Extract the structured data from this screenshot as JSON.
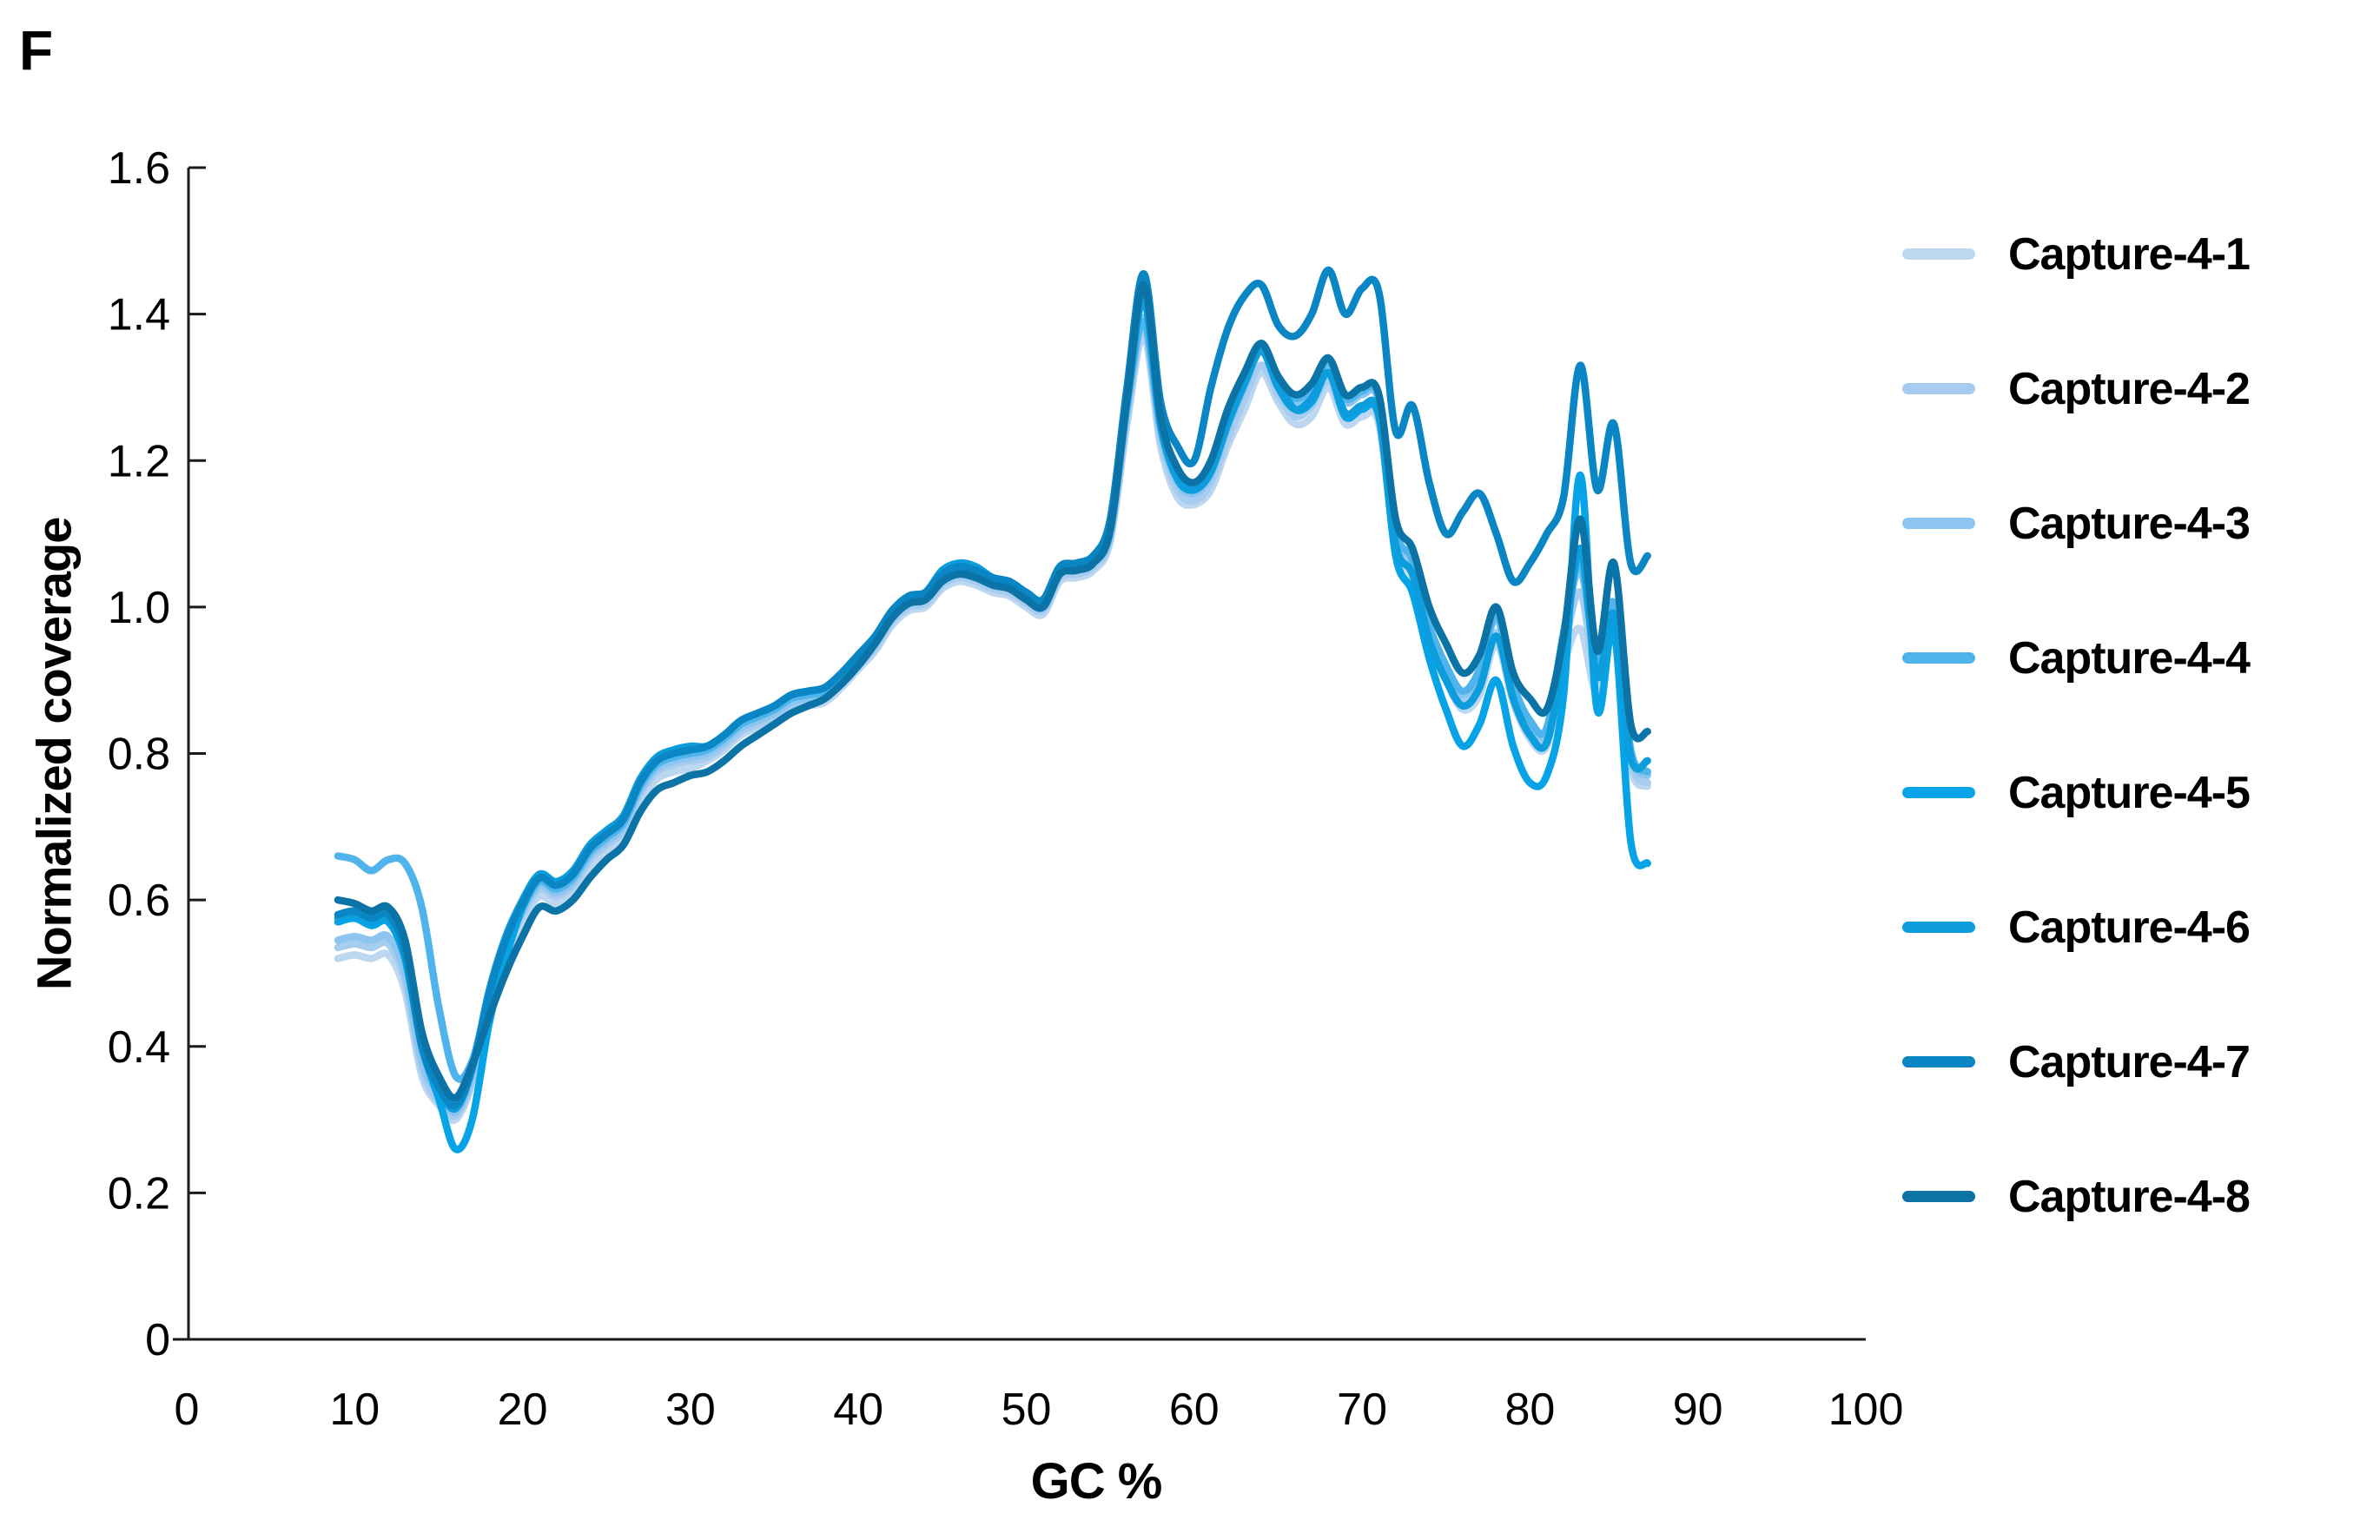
{
  "figure": {
    "panel_label": "F"
  },
  "chart_data": {
    "type": "line",
    "title": "",
    "xlabel": "GC %",
    "ylabel": "Normalized coverage",
    "xlim": [
      0,
      100
    ],
    "ylim": [
      0,
      1.6
    ],
    "grid": false,
    "legend_position": "right",
    "axis_color": "#1a1a1a",
    "tick_label_color": "#000000",
    "x_ticks": [
      0,
      10,
      20,
      30,
      40,
      50,
      60,
      70,
      80,
      90,
      100
    ],
    "y_tick_values": [
      0,
      0.2,
      0.4,
      0.6,
      0.8,
      1.0,
      1.2,
      1.4,
      1.6
    ],
    "y_ticks": [
      "0",
      "0.2",
      "0.4",
      "0.6",
      "0.8",
      "1.0",
      "1.2",
      "1.4",
      "1.6"
    ],
    "x": [
      9,
      10,
      11,
      12,
      13,
      14,
      15,
      16,
      17,
      18,
      19,
      20,
      21,
      22,
      23,
      24,
      25,
      26,
      27,
      28,
      29,
      30,
      31,
      32,
      33,
      34,
      35,
      36,
      37,
      38,
      39,
      40,
      41,
      42,
      43,
      44,
      45,
      46,
      47,
      48,
      49,
      50,
      51,
      52,
      53,
      54,
      55,
      56,
      57,
      58,
      59,
      60,
      61,
      62,
      63,
      64,
      65,
      66,
      67,
      68,
      69,
      70,
      71,
      72,
      73,
      74,
      75,
      76,
      77,
      78,
      79,
      80,
      81,
      82,
      83,
      84,
      85,
      86,
      87
    ],
    "series": [
      {
        "name": "Capture-4-1",
        "color": "#BDD7F0",
        "values": [
          0.52,
          0.525,
          0.52,
          0.525,
          0.475,
          0.36,
          0.32,
          0.3,
          0.35,
          0.445,
          0.52,
          0.57,
          0.605,
          0.595,
          0.61,
          0.645,
          0.665,
          0.685,
          0.735,
          0.765,
          0.775,
          0.78,
          0.79,
          0.805,
          0.825,
          0.835,
          0.845,
          0.86,
          0.865,
          0.87,
          0.89,
          0.915,
          0.94,
          0.975,
          0.995,
          1.0,
          1.025,
          1.035,
          1.03,
          1.02,
          1.015,
          1.0,
          0.99,
          1.035,
          1.04,
          1.05,
          1.09,
          1.25,
          1.37,
          1.22,
          1.15,
          1.14,
          1.16,
          1.22,
          1.27,
          1.32,
          1.28,
          1.25,
          1.26,
          1.3,
          1.25,
          1.26,
          1.25,
          1.08,
          1.04,
          0.95,
          0.9,
          0.86,
          0.88,
          0.95,
          0.87,
          0.82,
          0.81,
          0.92,
          0.97,
          0.88,
          0.96,
          0.78,
          0.755
        ]
      },
      {
        "name": "Capture-4-2",
        "color": "#A6CCEF",
        "values": [
          0.535,
          0.54,
          0.535,
          0.54,
          0.49,
          0.37,
          0.325,
          0.305,
          0.355,
          0.455,
          0.53,
          0.58,
          0.615,
          0.605,
          0.62,
          0.655,
          0.675,
          0.695,
          0.745,
          0.775,
          0.785,
          0.79,
          0.795,
          0.81,
          0.83,
          0.84,
          0.85,
          0.865,
          0.87,
          0.875,
          0.895,
          0.92,
          0.945,
          0.98,
          1.0,
          1.005,
          1.03,
          1.04,
          1.035,
          1.025,
          1.02,
          1.005,
          0.995,
          1.04,
          1.045,
          1.055,
          1.095,
          1.26,
          1.38,
          1.23,
          1.16,
          1.145,
          1.17,
          1.23,
          1.285,
          1.33,
          1.29,
          1.26,
          1.275,
          1.31,
          1.26,
          1.27,
          1.26,
          1.09,
          1.05,
          0.96,
          0.905,
          0.87,
          0.895,
          0.965,
          0.88,
          0.83,
          0.82,
          0.94,
          1.02,
          0.9,
          0.98,
          0.79,
          0.76
        ]
      },
      {
        "name": "Capture-4-3",
        "color": "#8CC5F0",
        "values": [
          0.545,
          0.55,
          0.545,
          0.55,
          0.5,
          0.38,
          0.335,
          0.31,
          0.36,
          0.46,
          0.535,
          0.585,
          0.62,
          0.61,
          0.625,
          0.66,
          0.68,
          0.7,
          0.75,
          0.78,
          0.79,
          0.795,
          0.8,
          0.815,
          0.835,
          0.845,
          0.855,
          0.87,
          0.875,
          0.88,
          0.9,
          0.925,
          0.95,
          0.985,
          1.005,
          1.01,
          1.04,
          1.05,
          1.045,
          1.03,
          1.025,
          1.01,
          1.0,
          1.045,
          1.05,
          1.06,
          1.1,
          1.27,
          1.395,
          1.24,
          1.17,
          1.155,
          1.18,
          1.245,
          1.3,
          1.35,
          1.305,
          1.28,
          1.295,
          1.33,
          1.28,
          1.29,
          1.28,
          1.1,
          1.06,
          0.97,
          0.915,
          0.88,
          0.91,
          0.985,
          0.89,
          0.84,
          0.83,
          0.96,
          1.05,
          0.92,
          1.0,
          0.8,
          0.77
        ]
      },
      {
        "name": "Capture-4-4",
        "color": "#4FB3EC",
        "values": [
          0.66,
          0.655,
          0.64,
          0.655,
          0.65,
          0.59,
          0.455,
          0.36,
          0.38,
          0.47,
          0.54,
          0.59,
          0.625,
          0.615,
          0.63,
          0.665,
          0.685,
          0.705,
          0.755,
          0.785,
          0.795,
          0.8,
          0.805,
          0.82,
          0.84,
          0.85,
          0.86,
          0.875,
          0.88,
          0.885,
          0.905,
          0.93,
          0.955,
          0.99,
          1.01,
          1.015,
          1.045,
          1.055,
          1.05,
          1.035,
          1.03,
          1.015,
          1.005,
          1.05,
          1.055,
          1.065,
          1.105,
          1.275,
          1.39,
          1.245,
          1.175,
          1.16,
          1.185,
          1.25,
          1.305,
          1.355,
          1.31,
          1.285,
          1.3,
          1.335,
          1.285,
          1.295,
          1.285,
          1.105,
          1.065,
          0.975,
          0.92,
          0.885,
          0.915,
          0.99,
          0.895,
          0.845,
          0.835,
          0.965,
          1.06,
          0.925,
          1.005,
          0.805,
          0.775
        ]
      },
      {
        "name": "Capture-4-5",
        "color": "#06A3E6",
        "values": [
          0.57,
          0.575,
          0.565,
          0.57,
          0.52,
          0.4,
          0.33,
          0.26,
          0.3,
          0.43,
          0.52,
          0.59,
          0.63,
          0.62,
          0.635,
          0.67,
          0.69,
          0.71,
          0.76,
          0.79,
          0.8,
          0.805,
          0.81,
          0.825,
          0.845,
          0.855,
          0.865,
          0.88,
          0.885,
          0.89,
          0.91,
          0.935,
          0.96,
          0.995,
          1.015,
          1.02,
          1.05,
          1.06,
          1.055,
          1.04,
          1.035,
          1.02,
          1.01,
          1.055,
          1.06,
          1.07,
          1.115,
          1.29,
          1.42,
          1.25,
          1.18,
          1.165,
          1.19,
          1.255,
          1.31,
          1.36,
          1.31,
          1.27,
          1.28,
          1.32,
          1.26,
          1.27,
          1.26,
          1.07,
          1.02,
          0.93,
          0.86,
          0.81,
          0.84,
          0.9,
          0.81,
          0.76,
          0.77,
          0.88,
          1.18,
          0.86,
          0.97,
          0.68,
          0.65
        ]
      },
      {
        "name": "Capture-4-6",
        "color": "#0D9DDC",
        "values": [
          0.575,
          0.58,
          0.57,
          0.575,
          0.525,
          0.41,
          0.345,
          0.315,
          0.37,
          0.475,
          0.55,
          0.6,
          0.635,
          0.625,
          0.64,
          0.675,
          0.695,
          0.715,
          0.765,
          0.795,
          0.805,
          0.81,
          0.81,
          0.825,
          0.845,
          0.855,
          0.865,
          0.88,
          0.885,
          0.89,
          0.91,
          0.935,
          0.96,
          0.995,
          1.015,
          1.02,
          1.05,
          1.06,
          1.055,
          1.04,
          1.035,
          1.02,
          1.01,
          1.055,
          1.06,
          1.07,
          1.11,
          1.28,
          1.42,
          1.25,
          1.175,
          1.16,
          1.185,
          1.25,
          1.305,
          1.35,
          1.3,
          1.27,
          1.285,
          1.32,
          1.265,
          1.275,
          1.265,
          1.085,
          1.045,
          0.955,
          0.9,
          0.865,
          0.89,
          0.96,
          0.875,
          0.825,
          0.815,
          0.935,
          1.08,
          0.905,
          0.99,
          0.795,
          0.79
        ]
      },
      {
        "name": "Capture-4-7",
        "color": "#0A86C4",
        "values": [
          0.58,
          0.585,
          0.575,
          0.58,
          0.53,
          0.4,
          0.345,
          0.32,
          0.37,
          0.47,
          0.545,
          0.595,
          0.63,
          0.62,
          0.635,
          0.67,
          0.69,
          0.71,
          0.76,
          0.79,
          0.8,
          0.805,
          0.81,
          0.825,
          0.845,
          0.855,
          0.865,
          0.88,
          0.885,
          0.89,
          0.91,
          0.935,
          0.96,
          0.995,
          1.015,
          1.02,
          1.045,
          1.055,
          1.05,
          1.04,
          1.035,
          1.02,
          1.01,
          1.055,
          1.06,
          1.07,
          1.12,
          1.3,
          1.455,
          1.28,
          1.22,
          1.2,
          1.3,
          1.38,
          1.425,
          1.44,
          1.385,
          1.37,
          1.4,
          1.46,
          1.4,
          1.435,
          1.43,
          1.24,
          1.275,
          1.17,
          1.1,
          1.13,
          1.155,
          1.1,
          1.035,
          1.06,
          1.1,
          1.15,
          1.33,
          1.16,
          1.25,
          1.06,
          1.07
        ]
      },
      {
        "name": "Capture-4-8",
        "color": "#0B73A6",
        "values": [
          0.6,
          0.595,
          0.585,
          0.59,
          0.545,
          0.42,
          0.36,
          0.33,
          0.375,
          0.44,
          0.5,
          0.55,
          0.59,
          0.585,
          0.6,
          0.63,
          0.655,
          0.675,
          0.72,
          0.75,
          0.76,
          0.77,
          0.775,
          0.79,
          0.81,
          0.825,
          0.84,
          0.855,
          0.865,
          0.875,
          0.895,
          0.92,
          0.95,
          0.985,
          1.005,
          1.01,
          1.035,
          1.045,
          1.04,
          1.03,
          1.025,
          1.01,
          1.0,
          1.045,
          1.05,
          1.06,
          1.105,
          1.285,
          1.44,
          1.26,
          1.19,
          1.17,
          1.2,
          1.27,
          1.32,
          1.36,
          1.315,
          1.29,
          1.305,
          1.34,
          1.29,
          1.3,
          1.29,
          1.12,
          1.08,
          1.0,
          0.95,
          0.91,
          0.935,
          1.0,
          0.91,
          0.875,
          0.86,
          0.96,
          1.12,
          0.94,
          1.06,
          0.84,
          0.83
        ]
      }
    ]
  }
}
